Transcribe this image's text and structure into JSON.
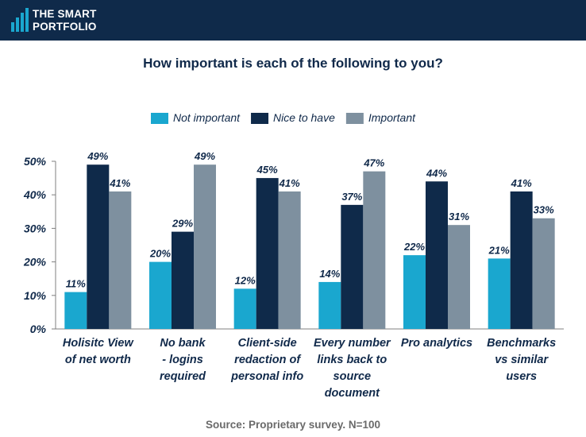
{
  "brand": {
    "line1": "THE SMART",
    "line2": "PORTFOLIO"
  },
  "footer": {
    "source": "Source: Proprietary survey. N=100"
  },
  "colors": {
    "header": "#0f2a4a",
    "not_important": "#1aa7cf",
    "nice_to_have": "#0f2a4a",
    "important": "#7e909f",
    "title": "#10294a"
  },
  "chart_data": {
    "type": "bar",
    "title": "How important is each of the following to you?",
    "categories": [
      [
        "Holisitc View",
        "of net worth"
      ],
      [
        "No bank",
        "- logins",
        "required"
      ],
      [
        "Client-side",
        "redaction of",
        "personal info"
      ],
      [
        "Every number",
        "links back to",
        "source",
        "document"
      ],
      [
        "Pro analytics"
      ],
      [
        "Benchmarks",
        "vs similar",
        "users"
      ]
    ],
    "series": [
      {
        "name": "Not important",
        "color": "#1aa7cf",
        "values": [
          11,
          20,
          12,
          14,
          22,
          21
        ]
      },
      {
        "name": "Nice to have",
        "color": "#0f2a4a",
        "values": [
          49,
          29,
          45,
          37,
          44,
          41
        ]
      },
      {
        "name": "Important",
        "color": "#7e909f",
        "values": [
          41,
          49,
          41,
          47,
          31,
          33
        ]
      }
    ],
    "value_suffix": "%",
    "ylim": [
      0,
      50
    ],
    "yticks": [
      0,
      10,
      20,
      30,
      40,
      50
    ],
    "ytick_labels": [
      "0%",
      "10%",
      "20%",
      "30%",
      "40%",
      "50%"
    ],
    "xlabel": "",
    "ylabel": "",
    "legend": "top"
  }
}
